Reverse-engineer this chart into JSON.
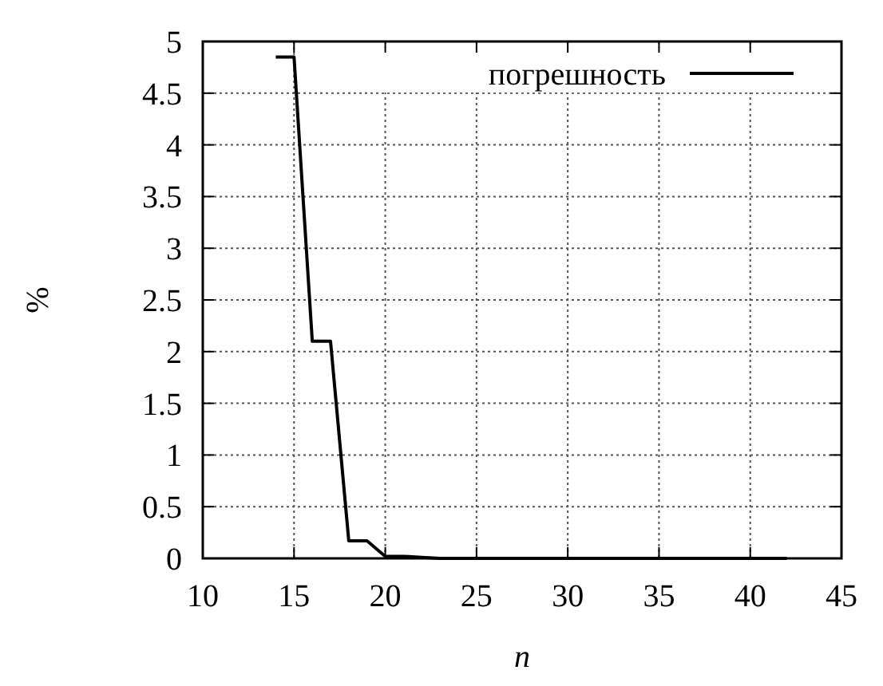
{
  "chart_data": {
    "type": "line",
    "xlabel": "n",
    "ylabel": "%",
    "series": [
      {
        "name": "погрешность",
        "color": "#000000",
        "x": [
          14,
          15,
          16,
          17,
          18,
          19,
          20,
          21,
          22,
          23,
          24,
          25,
          26,
          27,
          28,
          29,
          30,
          31,
          32,
          33,
          34,
          35,
          36,
          37,
          38,
          39,
          40,
          41,
          42
        ],
        "values": [
          4.85,
          4.85,
          2.1,
          2.1,
          0.17,
          0.17,
          0.02,
          0.02,
          0.01,
          0,
          0,
          0,
          0,
          0,
          0,
          0,
          0,
          0,
          0,
          0,
          0,
          0,
          0,
          0,
          0,
          0,
          0,
          0,
          0
        ]
      }
    ],
    "xlim": [
      10,
      45
    ],
    "xticks": [
      10,
      15,
      20,
      25,
      30,
      35,
      40,
      45
    ],
    "ylim": [
      0,
      5
    ],
    "yticks": [
      0,
      0.5,
      1,
      1.5,
      2,
      2.5,
      3,
      3.5,
      4,
      4.5,
      5
    ],
    "grid": true,
    "legend": "top right",
    "marker": "none",
    "line_style": "solid"
  }
}
